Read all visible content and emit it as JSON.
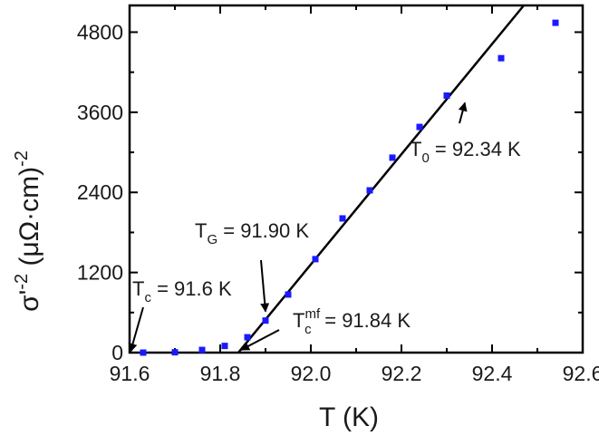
{
  "chart_data": {
    "type": "scatter",
    "xlabel": "T (K)",
    "ylabel_main": "σ'",
    "ylabel_sup": "-2",
    "ylabel_paren": " (μΩ·cm)",
    "ylabel_paren_sup": "-2",
    "xlim": [
      91.6,
      92.6
    ],
    "ylim": [
      0,
      5200
    ],
    "x_ticks": [
      91.6,
      91.8,
      92.0,
      92.2,
      92.4,
      92.6
    ],
    "x_tick_labels": [
      "91.6",
      "91.8",
      "92.0",
      "92.2",
      "92.4",
      "92.6"
    ],
    "y_ticks": [
      0,
      1200,
      2400,
      3600,
      4800
    ],
    "y_tick_labels": [
      "0",
      "1200",
      "2400",
      "3600",
      "4800"
    ],
    "marker_color": "#1a1aff",
    "line_color": "#000000",
    "series": [
      {
        "x": [
          91.63,
          91.7,
          91.76,
          91.81,
          91.86,
          91.9,
          91.95,
          92.01,
          92.07,
          92.13,
          92.18,
          92.24,
          92.3,
          92.42,
          92.54
        ],
        "y": [
          0,
          5,
          40,
          100,
          230,
          480,
          870,
          1400,
          2010,
          2430,
          2920,
          3380,
          3850,
          4410,
          4940
        ]
      }
    ],
    "fit_line": {
      "x": [
        91.84,
        92.47
      ],
      "y": [
        0,
        5200
      ]
    },
    "annotations": [
      {
        "main": "T",
        "sub": "c",
        "sup": "",
        "rest": " = 91.6 K",
        "arrow_to": [
          91.6,
          0
        ]
      },
      {
        "main": "T",
        "sub": "G",
        "sup": "",
        "rest": " = 91.90 K",
        "arrow_to": [
          91.9,
          480
        ]
      },
      {
        "main": "T",
        "sub": "c",
        "sup": "mf",
        "rest": " = 91.84 K",
        "arrow_to": [
          91.84,
          0
        ]
      },
      {
        "main": "T",
        "sub": "0",
        "sup": "",
        "rest": " = 92.34 K",
        "arrow_to": [
          92.34,
          3850
        ]
      }
    ]
  }
}
